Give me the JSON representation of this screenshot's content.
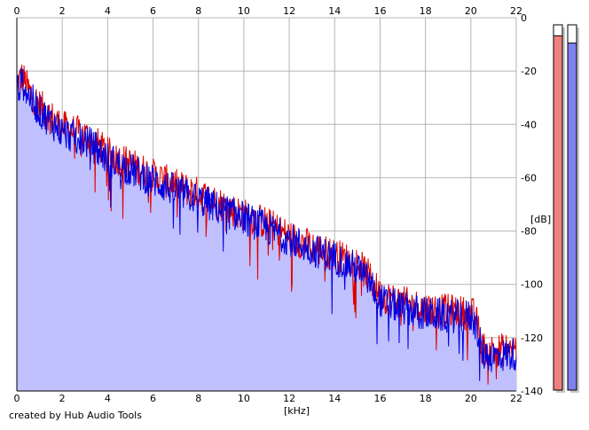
{
  "chart_data": {
    "type": "area",
    "xlabel": "[kHz]",
    "ylabel": "[dB]",
    "xlim": [
      0,
      22
    ],
    "ylim": [
      -140,
      0
    ],
    "x_ticks": [
      "0",
      "2",
      "4",
      "6",
      "8",
      "10",
      "12",
      "14",
      "16",
      "18",
      "20",
      "22"
    ],
    "y_ticks": [
      "0",
      "-20",
      "-40",
      "-60",
      "-80",
      "-100",
      "-120",
      "-140"
    ],
    "grid": true,
    "fill_color": "#c0c0ff",
    "series": [
      {
        "color": "#e00000",
        "x": [
          0,
          0.25,
          0.5,
          1,
          1.5,
          2,
          3,
          3.5,
          4,
          5,
          6,
          7,
          8,
          9,
          10,
          11,
          12,
          13,
          14,
          15,
          15.5,
          16,
          17,
          18,
          19,
          20,
          20.2,
          20.5,
          21,
          22
        ],
        "y": [
          -25,
          -22,
          -27,
          -33,
          -37,
          -41,
          -44,
          -47,
          -51,
          -55,
          -59,
          -63,
          -66,
          -70,
          -74,
          -77,
          -82,
          -86,
          -89,
          -92,
          -97,
          -104,
          -107,
          -109,
          -110,
          -111,
          -112,
          -124,
          -125,
          -124
        ]
      },
      {
        "color": "#0000e0",
        "x": [
          0,
          0.25,
          0.5,
          1,
          1.5,
          2,
          3,
          3.5,
          4,
          5,
          6,
          7,
          8,
          9,
          10,
          11,
          12,
          13,
          14,
          15,
          15.5,
          16,
          17,
          18,
          19,
          20,
          20.2,
          20.5,
          21,
          22
        ],
        "y": [
          -27,
          -24,
          -29,
          -35,
          -39,
          -43,
          -46,
          -49,
          -53,
          -57,
          -61,
          -65,
          -68,
          -72,
          -75,
          -79,
          -83,
          -87,
          -90,
          -94,
          -99,
          -106,
          -109,
          -111,
          -112,
          -112,
          -114,
          -126,
          -127,
          -126
        ]
      }
    ],
    "level_meters": [
      {
        "color": "#f08080",
        "level": 0.97
      },
      {
        "color": "#8080f0",
        "level": 0.95
      }
    ]
  },
  "footer": {
    "credit": "created by Hub Audio Tools"
  }
}
